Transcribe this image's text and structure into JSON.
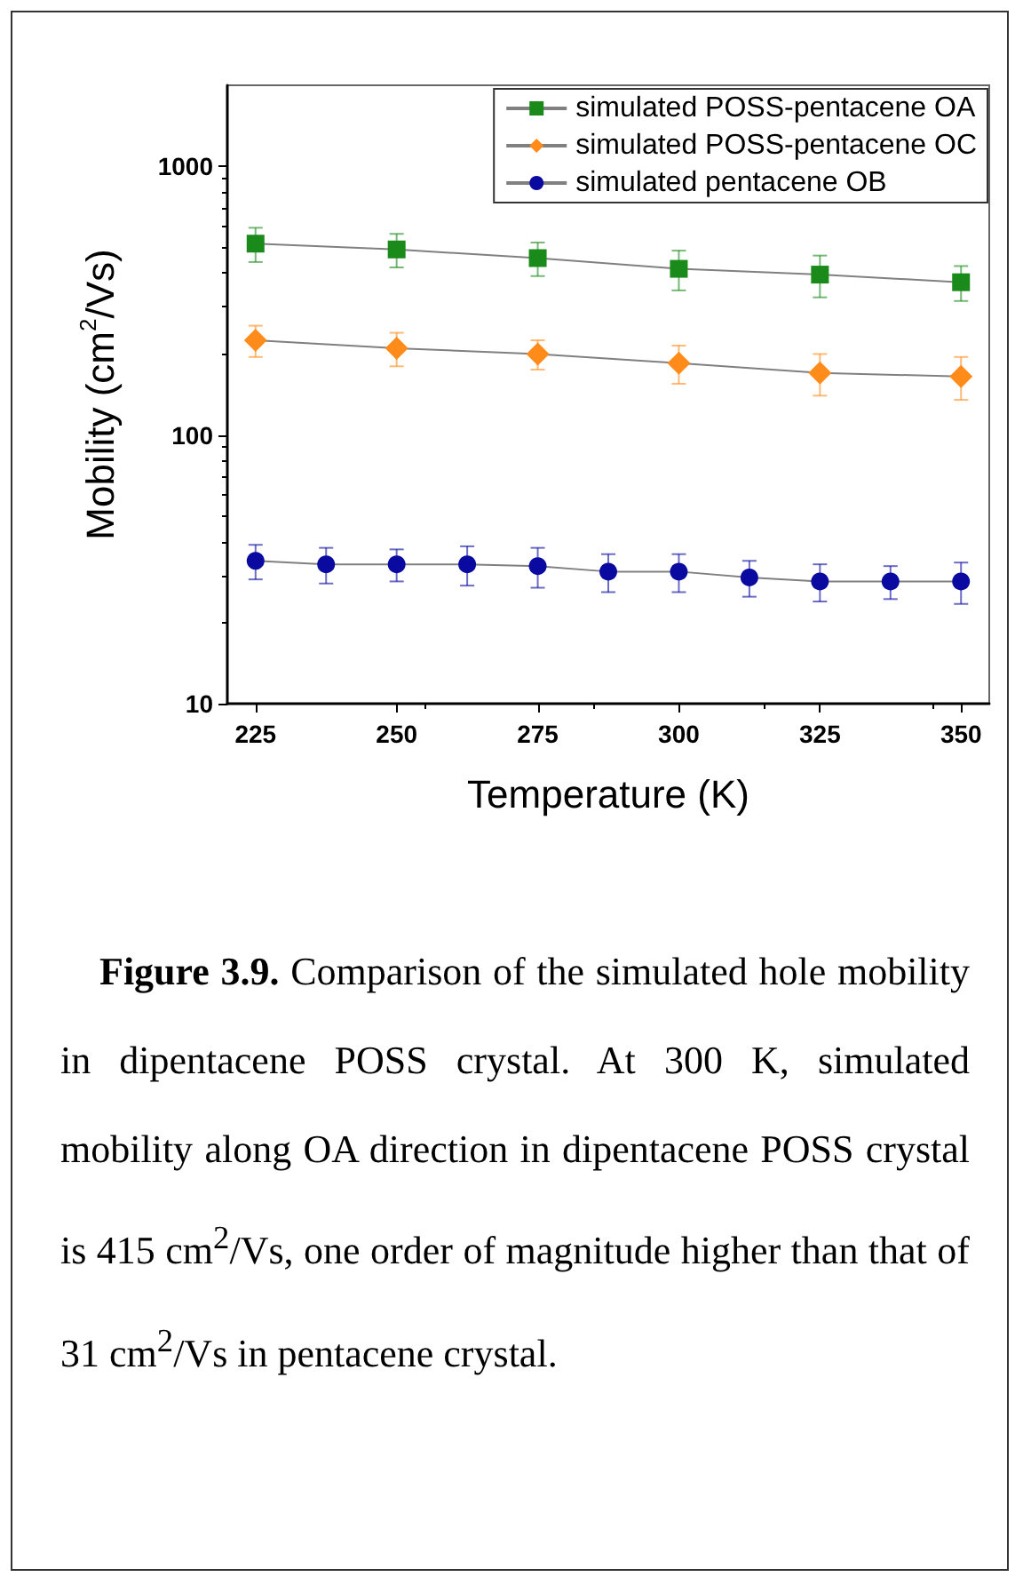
{
  "chart_data": {
    "type": "line",
    "xlabel": "Temperature (K)",
    "ylabel": "Mobility (cm$^{2}$/Vs)",
    "log": "y",
    "xlim": [
      220,
      355
    ],
    "ylim": [
      10,
      2000
    ],
    "xticks": [
      225,
      250,
      275,
      300,
      325,
      350
    ],
    "yticks": [
      10,
      100,
      1000
    ],
    "legend": "top right",
    "grid": false,
    "series": [
      {
        "name": "simulated POSS-pentacene OA",
        "color": "#1a8a1a",
        "marker": "square",
        "x": [
          225,
          250,
          275,
          300,
          325,
          350
        ],
        "values": [
          515,
          490,
          455,
          415,
          395,
          370
        ],
        "errors": [
          75,
          70,
          65,
          70,
          70,
          55
        ]
      },
      {
        "name": "simulated POSS-pentacene OC",
        "color": "#ff8c1a",
        "marker": "diamond",
        "x": [
          225,
          250,
          275,
          300,
          325,
          350
        ],
        "values": [
          225,
          210,
          200,
          185,
          170,
          165
        ],
        "errors": [
          30,
          30,
          25,
          30,
          30,
          30
        ]
      },
      {
        "name": "simulated pentacene OB",
        "color": "#0a0aa0",
        "marker": "circle",
        "x": [
          225,
          237.5,
          250,
          262.5,
          275,
          287.5,
          300,
          312.5,
          325,
          337.5,
          350
        ],
        "values": [
          34,
          33,
          33,
          33,
          32.5,
          31,
          31,
          29.5,
          28.5,
          28.5,
          28.5
        ],
        "errors": [
          5,
          5,
          4.5,
          5.5,
          5.5,
          5,
          5,
          4.5,
          4.5,
          4,
          5
        ]
      }
    ],
    "annotations": [
      "Figure 3.9.",
      "Comparison of the simulated hole mobility in dipentacene POSS crystal. At 300 K, simulated mobility along OA direction in dipentacene  POSS crystal is 415 cm$^{2}$/Vs, one order of magnitude higher than that of 31 cm$^{2}$/Vs in pentacene crystal."
    ]
  }
}
